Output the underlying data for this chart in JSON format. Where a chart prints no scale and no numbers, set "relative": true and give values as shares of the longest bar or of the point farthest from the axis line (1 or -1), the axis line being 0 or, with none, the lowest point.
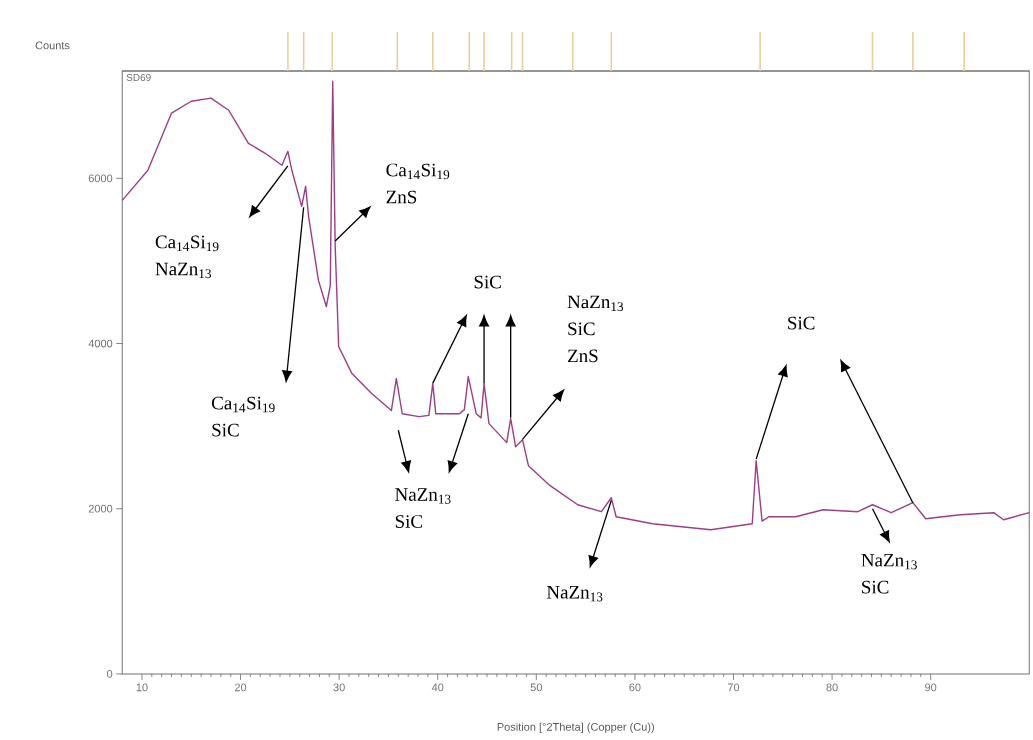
{
  "chart_data": [
    {
      "type": "bar",
      "relative": true,
      "xlim": [
        8,
        100
      ],
      "x": [
        24.8,
        26.4,
        29.3,
        35.9,
        39.5,
        43.2,
        44.7,
        47.5,
        48.6,
        53.7,
        57.6,
        72.7,
        84.1,
        88.2,
        93.4
      ],
      "values": [
        1,
        1,
        1,
        1,
        1,
        1,
        1,
        1,
        1,
        1,
        1,
        1,
        1,
        1,
        1
      ],
      "color": "#e6cfa0"
    },
    {
      "type": "line",
      "xlabel": "Position [°2Theta] (Copper (Cu))",
      "ylabel": "Counts",
      "xlim": [
        8,
        100
      ],
      "ylim": [
        0,
        7300
      ],
      "xticks": [
        10,
        20,
        30,
        40,
        50,
        60,
        70,
        80,
        90
      ],
      "yticks": [
        0,
        2000,
        4000,
        6000
      ],
      "grid": false,
      "marker": "none",
      "line_style": "solid",
      "series": [
        {
          "color": "#9b3f86",
          "x": [
            8.0,
            10.6,
            13.0,
            15.0,
            17.0,
            18.8,
            20.8,
            22.5,
            24.2,
            24.8,
            25.2,
            26.2,
            26.6,
            26.9,
            27.9,
            28.7,
            29.1,
            29.35,
            29.6,
            29.95,
            31.3,
            33.3,
            35.3,
            35.8,
            36.4,
            38.1,
            39.1,
            39.5,
            39.8,
            42.2,
            42.7,
            43.1,
            43.9,
            44.4,
            44.7,
            45.2,
            47.0,
            47.4,
            47.9,
            48.6,
            49.2,
            51.4,
            54.2,
            56.6,
            57.6,
            58.1,
            61.8,
            67.7,
            71.9,
            72.3,
            72.9,
            73.6,
            76.3,
            79.1,
            82.6,
            84.1,
            86.0,
            88.2,
            89.5,
            93.0,
            96.4,
            97.4,
            100.0
          ],
          "values": [
            5733,
            6097,
            6790,
            6933,
            6970,
            6824,
            6424,
            6303,
            6158,
            6327,
            6097,
            5660,
            5903,
            5539,
            4764,
            4448,
            4700,
            7176,
            5176,
            3964,
            3636,
            3394,
            3188,
            3576,
            3150,
            3115,
            3130,
            3515,
            3150,
            3150,
            3200,
            3600,
            3150,
            3100,
            3515,
            3030,
            2800,
            3090,
            2750,
            2836,
            2521,
            2279,
            2048,
            1964,
            2133,
            1903,
            1818,
            1745,
            1818,
            2582,
            1850,
            1903,
            1903,
            1988,
            1964,
            2048,
            1952,
            2073,
            1879,
            1927,
            1952,
            1867,
            1952
          ]
        }
      ],
      "annotations": [
        "SD69",
        "Ca$_{14}$Si$_{19}$ NaZn$_{13}$",
        "Ca$_{14}$Si$_{19}$ SiC",
        "Ca$_{14}$Si$_{19}$ ZnS",
        "SiC",
        "NaZn$_{13}$ SiC",
        "NaZn$_{13}$ SiC ZnS",
        "NaZn$_{13}$",
        "SiC",
        "NaZn$_{13}$ SiC"
      ]
    }
  ]
}
